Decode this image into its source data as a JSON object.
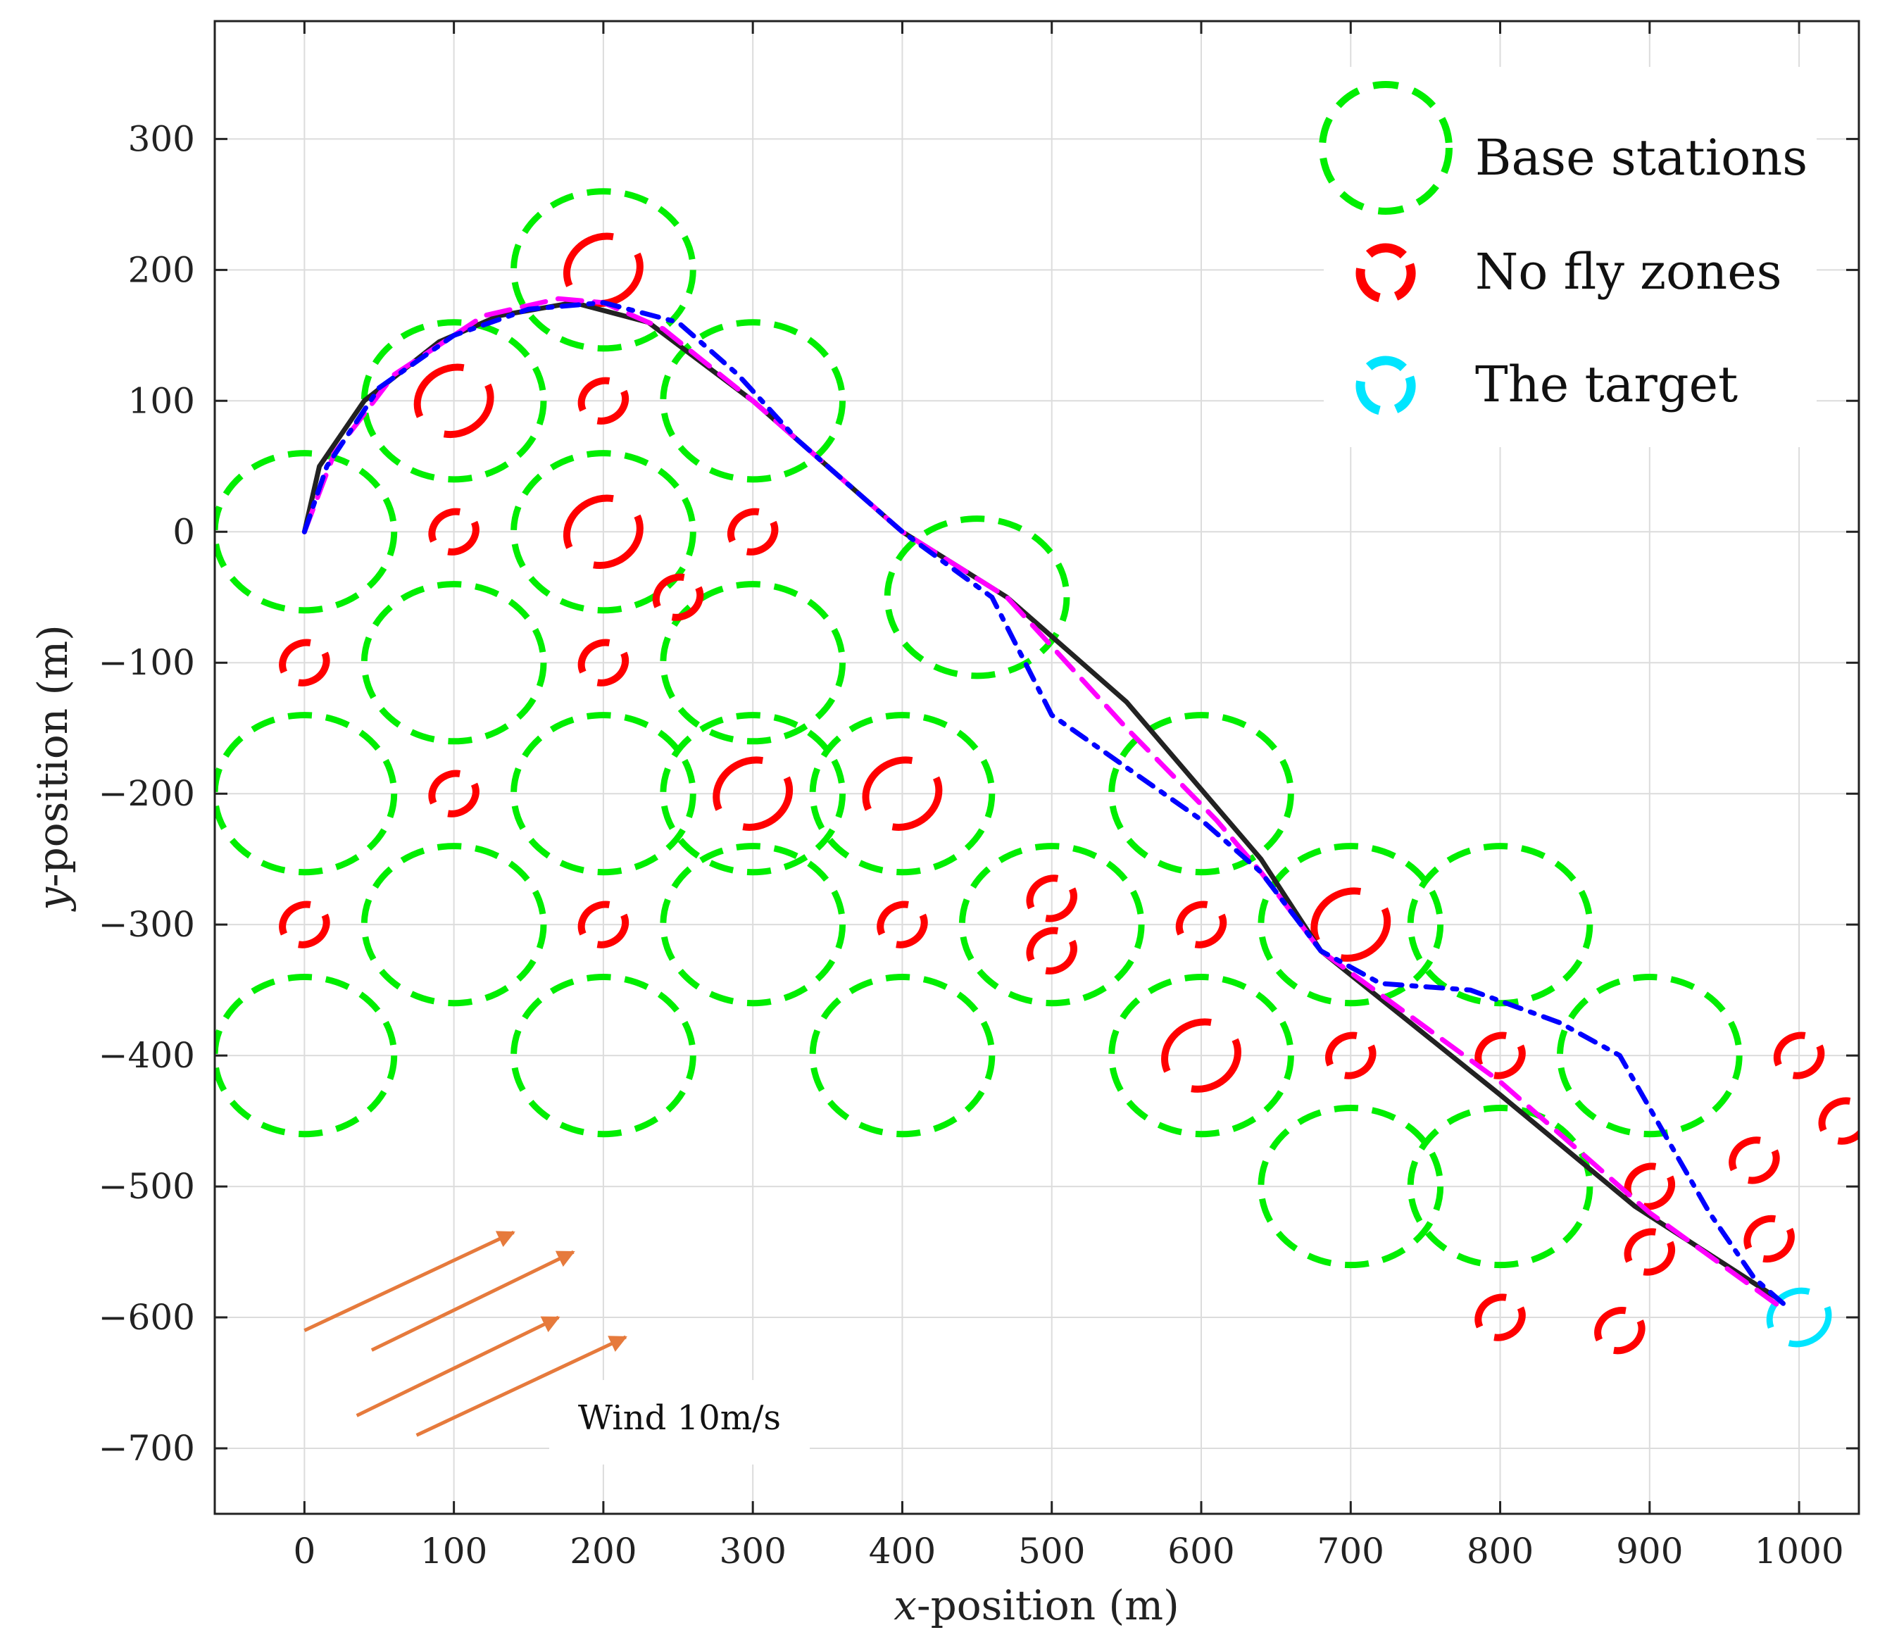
{
  "chart_data": {
    "type": "line",
    "title": "",
    "xlabel_var": "x",
    "xlabel_rest": "-position (m)",
    "ylabel_var": "y",
    "ylabel_rest": "-position (m)",
    "xlim": [
      -60,
      1040
    ],
    "ylim": [
      -750,
      390
    ],
    "xticks": [
      0,
      100,
      200,
      300,
      400,
      500,
      600,
      700,
      800,
      900,
      1000
    ],
    "yticks": [
      300,
      200,
      100,
      0,
      -100,
      -200,
      -300,
      -400,
      -500,
      -600,
      -700
    ],
    "xtick_labels": [
      "0",
      "100",
      "200",
      "300",
      "400",
      "500",
      "600",
      "700",
      "800",
      "900",
      "1000"
    ],
    "ytick_labels": [
      "300",
      "200",
      "100",
      "0",
      "−100",
      "−200",
      "−300",
      "−400",
      "−500",
      "−600",
      "−700"
    ],
    "grid": true,
    "legend_position": "top-right",
    "legend": [
      {
        "label": "Base stations",
        "kind": "base",
        "color": "#00ee00"
      },
      {
        "label": "No fly zones",
        "kind": "nfz",
        "color": "#ff0000"
      },
      {
        "label": "The target",
        "kind": "target",
        "color": "#00e5ff"
      }
    ],
    "base_stations": {
      "radius": 60,
      "color": "#00ee00",
      "centers": [
        [
          0,
          0
        ],
        [
          100,
          100
        ],
        [
          200,
          200
        ],
        [
          300,
          100
        ],
        [
          200,
          0
        ],
        [
          100,
          -100
        ],
        [
          300,
          -100
        ],
        [
          0,
          -200
        ],
        [
          200,
          -200
        ],
        [
          300,
          -200
        ],
        [
          400,
          -200
        ],
        [
          100,
          -300
        ],
        [
          300,
          -300
        ],
        [
          0,
          -400
        ],
        [
          200,
          -400
        ],
        [
          400,
          -400
        ],
        [
          450,
          -50
        ],
        [
          500,
          -300
        ],
        [
          600,
          -200
        ],
        [
          600,
          -400
        ],
        [
          700,
          -300
        ],
        [
          700,
          -500
        ],
        [
          800,
          -300
        ],
        [
          800,
          -500
        ],
        [
          900,
          -400
        ]
      ]
    },
    "no_fly_zones": {
      "color": "#ff0000",
      "zones": [
        [
          200,
          200,
          25
        ],
        [
          100,
          100,
          25
        ],
        [
          200,
          100,
          15
        ],
        [
          100,
          0,
          15
        ],
        [
          200,
          0,
          25
        ],
        [
          300,
          0,
          15
        ],
        [
          250,
          -50,
          15
        ],
        [
          0,
          -100,
          15
        ],
        [
          200,
          -100,
          15
        ],
        [
          100,
          -200,
          15
        ],
        [
          300,
          -200,
          25
        ],
        [
          400,
          -200,
          25
        ],
        [
          0,
          -300,
          15
        ],
        [
          200,
          -300,
          15
        ],
        [
          400,
          -300,
          15
        ],
        [
          500,
          -280,
          15
        ],
        [
          500,
          -320,
          15
        ],
        [
          600,
          -300,
          15
        ],
        [
          700,
          -300,
          25
        ],
        [
          600,
          -400,
          25
        ],
        [
          700,
          -400,
          15
        ],
        [
          800,
          -400,
          15
        ],
        [
          900,
          -500,
          15
        ],
        [
          900,
          -550,
          15
        ],
        [
          800,
          -600,
          15
        ],
        [
          880,
          -610,
          15
        ],
        [
          1000,
          -400,
          15
        ],
        [
          1030,
          -450,
          15
        ],
        [
          970,
          -480,
          15
        ],
        [
          980,
          -540,
          15
        ]
      ]
    },
    "target": {
      "x": 1000,
      "y": -600,
      "r": 20,
      "color": "#00e5ff"
    },
    "series": [
      {
        "name": "black solid path",
        "color": "#222222",
        "style": "solid",
        "points": [
          [
            0,
            0
          ],
          [
            10,
            50
          ],
          [
            40,
            100
          ],
          [
            90,
            145
          ],
          [
            130,
            165
          ],
          [
            180,
            175
          ],
          [
            230,
            160
          ],
          [
            300,
            100
          ],
          [
            400,
            0
          ],
          [
            470,
            -50
          ],
          [
            550,
            -130
          ],
          [
            610,
            -210
          ],
          [
            640,
            -250
          ],
          [
            680,
            -320
          ],
          [
            800,
            -430
          ],
          [
            890,
            -515
          ],
          [
            985,
            -585
          ]
        ]
      },
      {
        "name": "magenta dashed path",
        "color": "#ff00ff",
        "style": "dashed",
        "points": [
          [
            0,
            0
          ],
          [
            20,
            60
          ],
          [
            60,
            120
          ],
          [
            120,
            165
          ],
          [
            170,
            178
          ],
          [
            200,
            175
          ],
          [
            240,
            155
          ],
          [
            300,
            100
          ],
          [
            400,
            0
          ],
          [
            470,
            -50
          ],
          [
            550,
            -150
          ],
          [
            610,
            -220
          ],
          [
            640,
            -260
          ],
          [
            680,
            -320
          ],
          [
            800,
            -420
          ],
          [
            900,
            -520
          ],
          [
            985,
            -590
          ]
        ]
      },
      {
        "name": "blue dash-dot path",
        "color": "#0000ff",
        "style": "dashdot",
        "points": [
          [
            0,
            0
          ],
          [
            15,
            50
          ],
          [
            50,
            110
          ],
          [
            100,
            150
          ],
          [
            150,
            170
          ],
          [
            200,
            175
          ],
          [
            250,
            160
          ],
          [
            290,
            120
          ],
          [
            330,
            70
          ],
          [
            400,
            0
          ],
          [
            460,
            -50
          ],
          [
            500,
            -140
          ],
          [
            550,
            -180
          ],
          [
            600,
            -220
          ],
          [
            640,
            -260
          ],
          [
            680,
            -320
          ],
          [
            720,
            -345
          ],
          [
            780,
            -350
          ],
          [
            840,
            -375
          ],
          [
            880,
            -400
          ],
          [
            910,
            -460
          ],
          [
            940,
            -520
          ],
          [
            970,
            -570
          ],
          [
            990,
            -590
          ]
        ]
      }
    ],
    "wind": {
      "label": "Wind 10m/s",
      "color": "#e67a3c",
      "arrows": [
        [
          [
            0,
            -610
          ],
          [
            140,
            -535
          ]
        ],
        [
          [
            45,
            -625
          ],
          [
            180,
            -550
          ]
        ],
        [
          [
            35,
            -675
          ],
          [
            170,
            -600
          ]
        ],
        [
          [
            75,
            -690
          ],
          [
            215,
            -615
          ]
        ]
      ]
    }
  }
}
